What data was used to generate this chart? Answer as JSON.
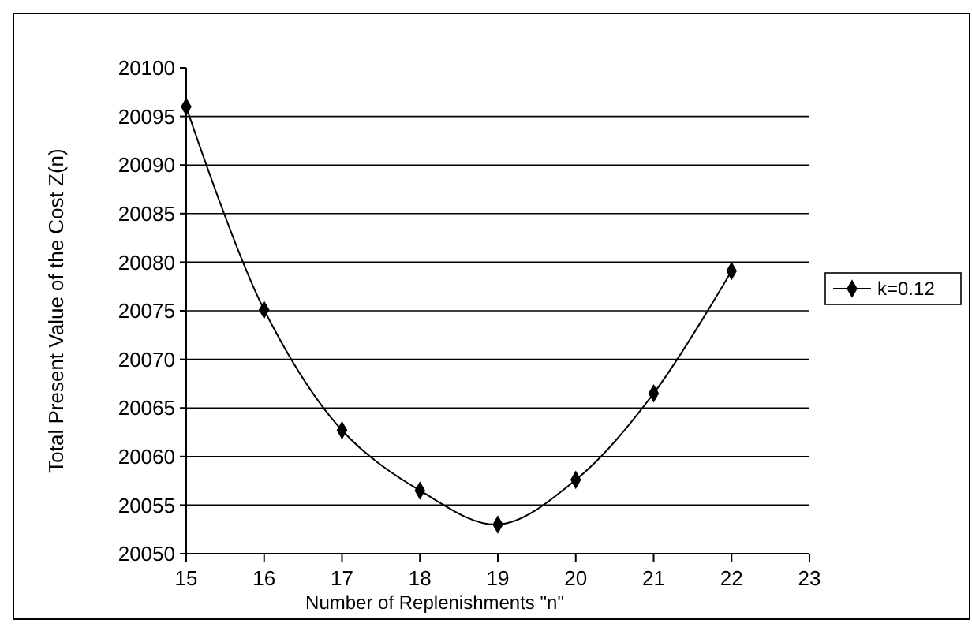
{
  "chart_data": {
    "type": "line",
    "xlabel": "Number of Replenishments \"n\"",
    "ylabel": "Total Present Value of the Cost Z(n)",
    "x": [
      15,
      16,
      17,
      18,
      19,
      20,
      21,
      22
    ],
    "series": [
      {
        "name": "k=0.12",
        "color": "#000000",
        "values": [
          20096,
          20075.1,
          20062.7,
          20056.5,
          20053,
          20057.6,
          20066.5,
          20079.1
        ]
      }
    ],
    "xlim": [
      15,
      23
    ],
    "xticks": [
      15,
      16,
      17,
      18,
      19,
      20,
      21,
      22,
      23
    ],
    "ylim": [
      20050,
      20100
    ],
    "yticks": [
      20050,
      20055,
      20060,
      20065,
      20070,
      20075,
      20080,
      20085,
      20090,
      20095,
      20100
    ],
    "grid": "y",
    "legend": "right",
    "marker": "diamond",
    "line_style": "solid"
  }
}
